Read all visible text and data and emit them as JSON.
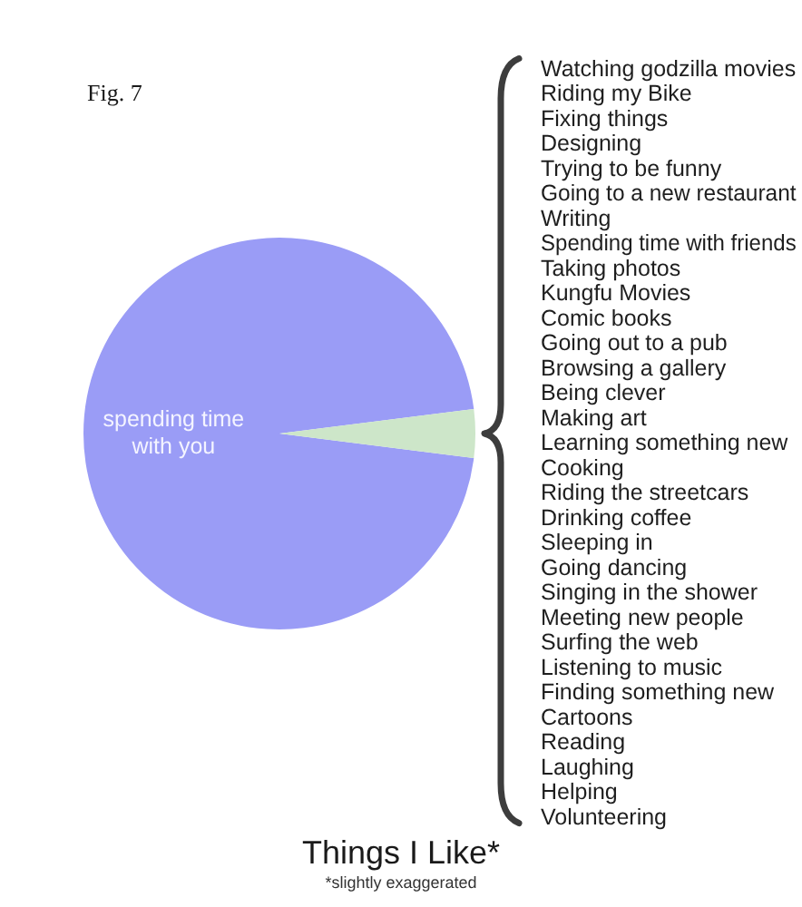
{
  "chart_data": {
    "type": "pie",
    "title": "Things I Like*",
    "subtitle": "*slightly exaggerated",
    "categories": [
      "spending time with you",
      "Watching godzilla movies\nRiding my Bike\nFixing things\nDesigning\nTrying to be funny\nGoing to a new restaurant\nWriting\nSpending time with friends\nTaking photos\nKungfu Movies\nComic books\nGoing out to a pub\nBrowsing a gallery\nBeing clever\nMaking art\nLearning something new\nCooking\nRiding the streetcars\nDrinking coffee\nSleeping in\nGoing dancing\nSinging in the shower\nMeeting new people\nSurfing the web\nListening to music\nFinding something new\nCartoons\nReading\nLaughing\nHelping\nVolunteering"
    ],
    "values": [
      96,
      4
    ],
    "colors": [
      "#9a9cf6",
      "#cde6c9"
    ],
    "annotations": [
      "Fig. 7"
    ]
  }
}
